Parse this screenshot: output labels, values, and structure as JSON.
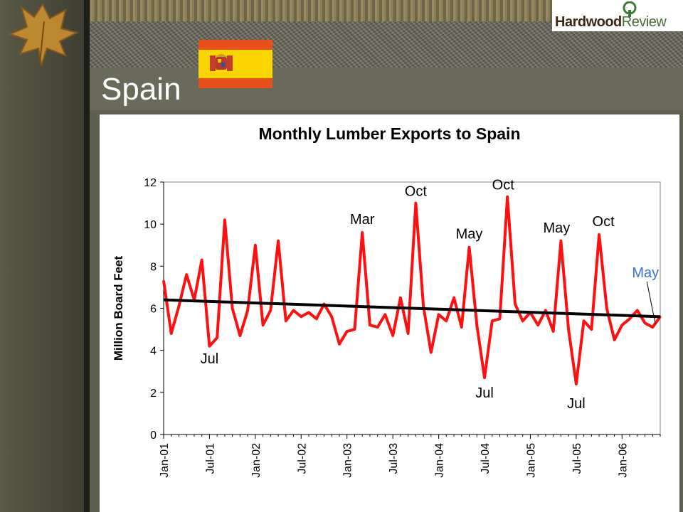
{
  "slide": {
    "title": "Spain",
    "logo_part1": "Hardwood",
    "logo_part2": "Review"
  },
  "colors": {
    "series": "#ff1010",
    "trend": "#000000",
    "last_annotation": "#3a6fd8"
  },
  "chart_data": {
    "type": "line",
    "title": "Monthly Lumber Exports to Spain",
    "ylabel": "Million Board Feet",
    "xlabel": "",
    "ylim": [
      0,
      12
    ],
    "yticks": [
      "0",
      "2",
      "4",
      "6",
      "8",
      "10",
      "12"
    ],
    "xtick_labels": [
      "Jan-01",
      "Jul-01",
      "Jan-02",
      "Jul-02",
      "Jan-03",
      "Jul-03",
      "Jan-04",
      "Jul-04",
      "Jan-05",
      "Jul-05",
      "Jan-06"
    ],
    "grid": false,
    "series": [
      {
        "values": [
          7.3,
          4.8,
          6.1,
          7.6,
          6.4,
          8.3,
          4.2,
          4.6,
          10.2,
          6.0,
          4.7,
          5.9,
          9.0,
          5.2,
          5.9,
          9.2,
          5.4,
          5.9,
          5.6,
          5.8,
          5.5,
          6.2,
          5.6,
          4.3,
          4.9,
          5.0,
          9.6,
          5.2,
          5.1,
          5.7,
          4.7,
          6.5,
          4.8,
          11.0,
          6.1,
          3.9,
          5.7,
          5.4,
          6.5,
          5.1,
          8.9,
          5.2,
          2.7,
          5.4,
          5.5,
          11.3,
          6.2,
          5.4,
          5.8,
          5.2,
          5.9,
          4.9,
          9.2,
          5.0,
          2.4,
          5.4,
          5.0,
          9.5,
          6.0,
          4.5,
          5.2,
          5.5,
          5.9,
          5.3,
          5.1,
          5.6
        ]
      }
    ],
    "trend": {
      "start": 6.4,
      "end": 5.6
    },
    "annotations": [
      {
        "text": "Jul",
        "index": 6
      },
      {
        "text": "Mar",
        "index": 26
      },
      {
        "text": "Oct",
        "index": 33
      },
      {
        "text": "May",
        "index": 40
      },
      {
        "text": "Jul",
        "index": 42
      },
      {
        "text": "Oct",
        "index": 45
      },
      {
        "text": "May",
        "index": 52
      },
      {
        "text": "Jul",
        "index": 54
      },
      {
        "text": "Oct",
        "index": 57
      },
      {
        "text": "May",
        "index": 64
      }
    ]
  }
}
